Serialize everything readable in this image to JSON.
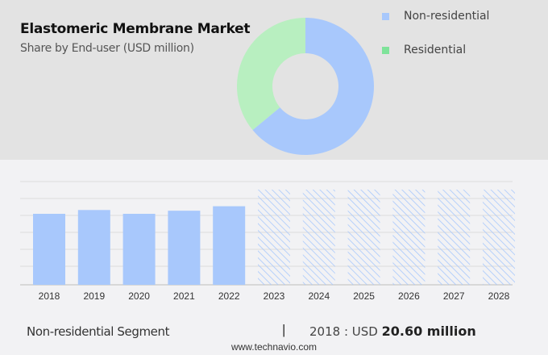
{
  "header": {
    "title": "Elastomeric Membrane Market",
    "subtitle": "Share by End-user (USD million)"
  },
  "legend": [
    {
      "label": "Non-residential",
      "color": "#a8c8fc"
    },
    {
      "label": "Residential",
      "color": "#7fe39a"
    }
  ],
  "footer": {
    "segment": "Non-residential Segment",
    "separator": "|",
    "year_label": "2018 : USD ",
    "value": "20.60 million",
    "website": "www.technavio.com"
  },
  "chart_data": [
    {
      "type": "pie",
      "title": "Share by End-user (USD million)",
      "donut": true,
      "labels": [
        "Non-residential",
        "Residential"
      ],
      "values": [
        64,
        36
      ],
      "colors": [
        "#a8c8fc",
        "#b8efc0"
      ],
      "legend_position": "right"
    },
    {
      "type": "bar",
      "title": "Non-residential Segment",
      "categories": [
        "2018",
        "2019",
        "2020",
        "2021",
        "2022",
        "2023",
        "2024",
        "2025",
        "2026",
        "2027",
        "2028"
      ],
      "values": [
        20.6,
        21.7,
        20.6,
        21.5,
        22.8,
        null,
        null,
        null,
        null,
        null,
        null
      ],
      "forecast_years": [
        "2023",
        "2024",
        "2025",
        "2026",
        "2027",
        "2028"
      ],
      "grid": true,
      "ylim": [
        0,
        30
      ],
      "xlabel": "",
      "ylabel": ""
    }
  ]
}
